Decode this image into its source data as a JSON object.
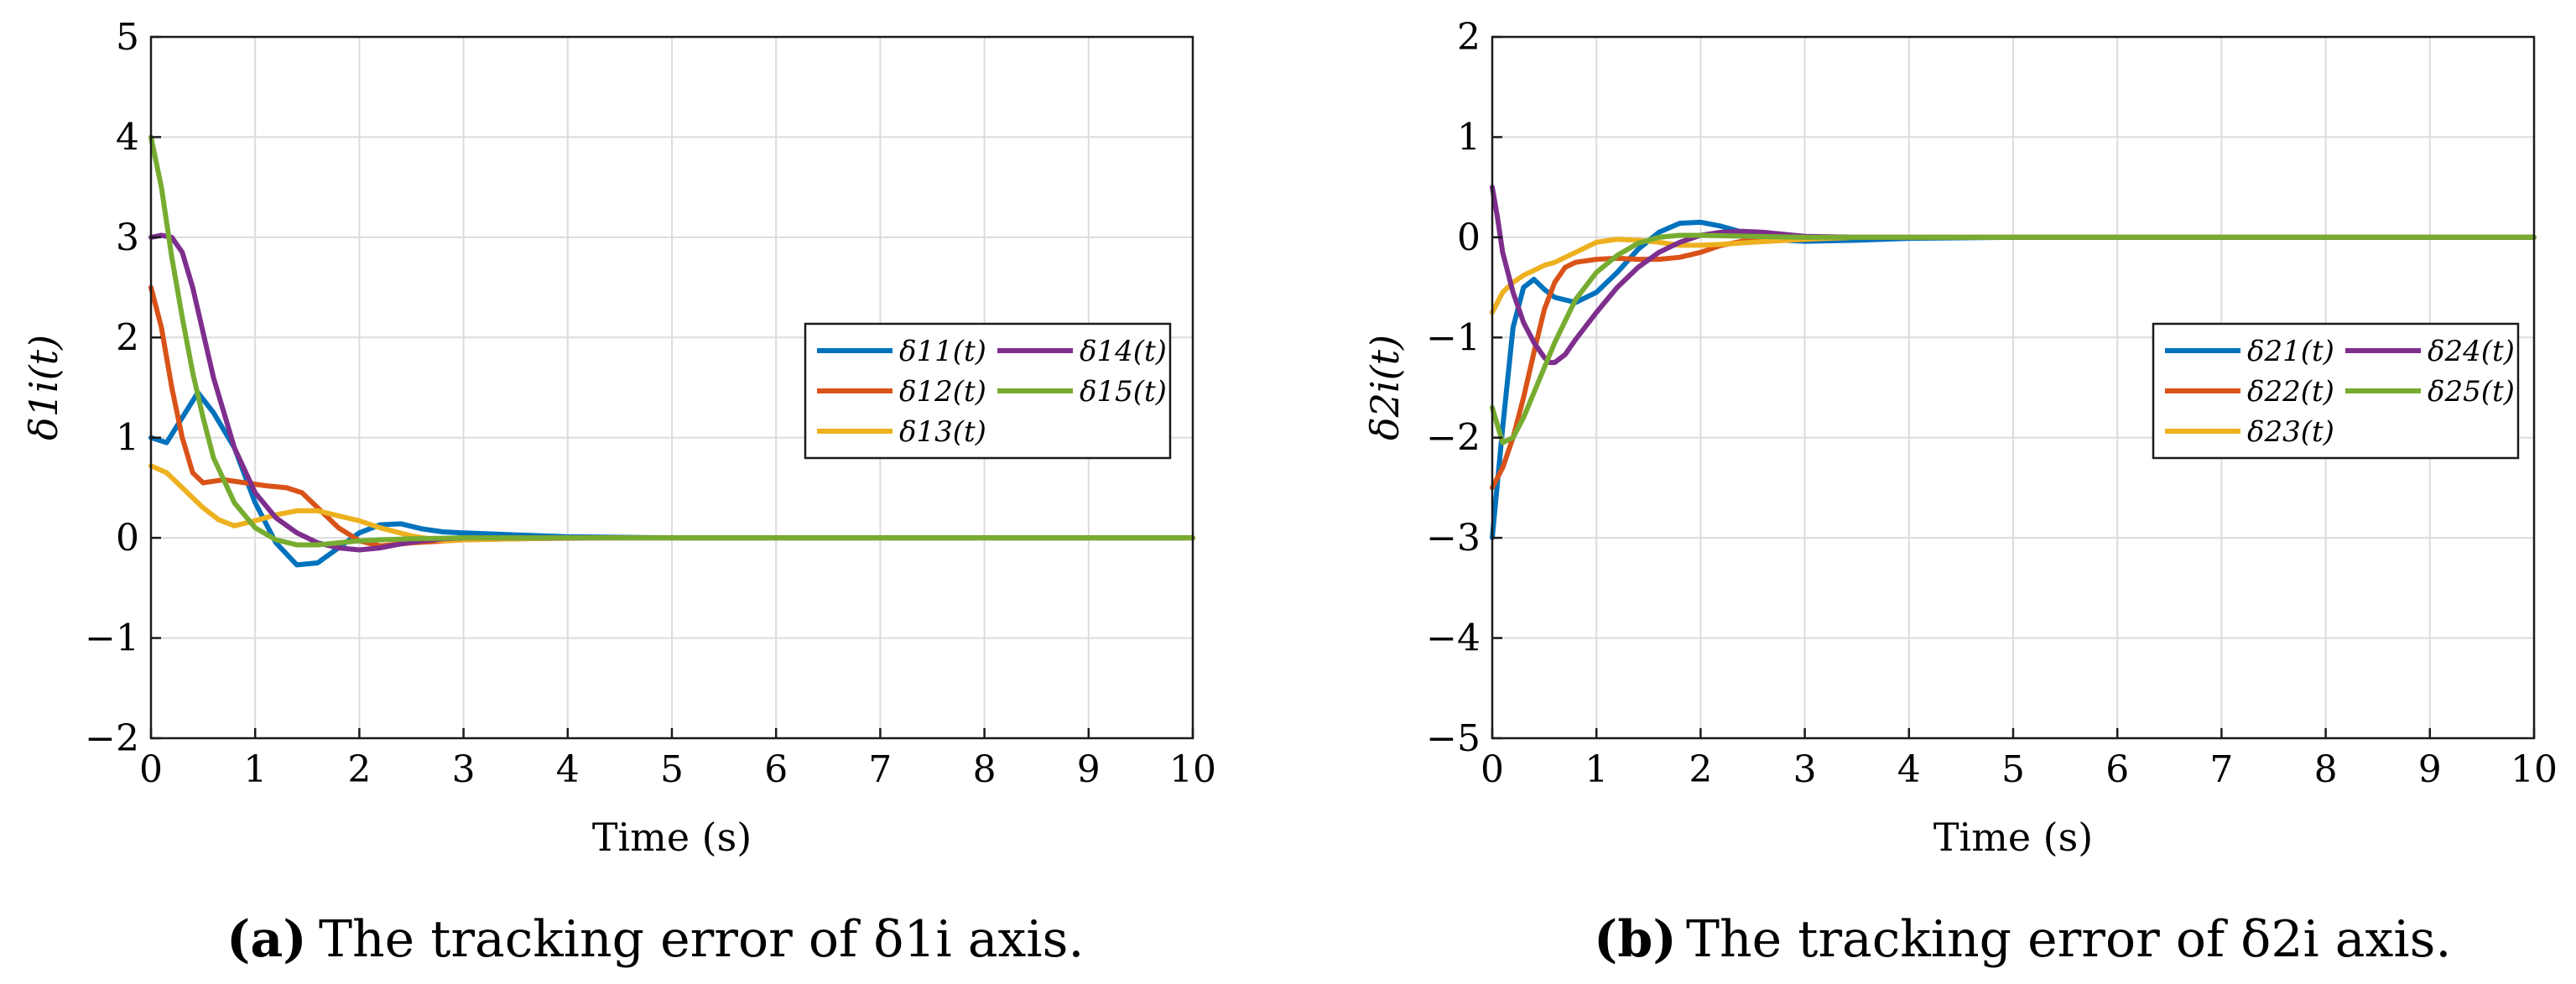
{
  "chart_data": [
    {
      "type": "line",
      "panel": "a",
      "caption_letter": "(a)",
      "caption_text": "The tracking error of δ1i axis.",
      "xlabel": "Time (s)",
      "ylabel": "δ1i(t)",
      "xlim": [
        0,
        10
      ],
      "ylim": [
        -2,
        5
      ],
      "xticks": [
        "0",
        "1",
        "2",
        "3",
        "4",
        "5",
        "6",
        "7",
        "8",
        "9",
        "10"
      ],
      "yticks": [
        "−2",
        "−1",
        "0",
        "1",
        "2",
        "3",
        "4",
        "5"
      ],
      "grid": true,
      "legend_position": "right-middle",
      "series": [
        {
          "name": "δ11(t)",
          "color": "#0072BD",
          "x": [
            0,
            0.15,
            0.3,
            0.45,
            0.6,
            0.8,
            1.0,
            1.2,
            1.4,
            1.6,
            1.8,
            2.0,
            2.2,
            2.4,
            2.6,
            2.8,
            3.0,
            3.5,
            4.0,
            5.0,
            10.0
          ],
          "y": [
            1.0,
            0.95,
            1.2,
            1.45,
            1.25,
            0.9,
            0.35,
            -0.05,
            -0.27,
            -0.25,
            -0.1,
            0.05,
            0.13,
            0.14,
            0.09,
            0.06,
            0.05,
            0.03,
            0.01,
            0,
            0
          ]
        },
        {
          "name": "δ12(t)",
          "color": "#D95319",
          "x": [
            0,
            0.1,
            0.2,
            0.3,
            0.4,
            0.5,
            0.7,
            0.9,
            1.1,
            1.3,
            1.45,
            1.6,
            1.8,
            2.0,
            2.2,
            2.5,
            3.0,
            3.5,
            4.3,
            5.0,
            10.0
          ],
          "y": [
            2.5,
            2.1,
            1.5,
            1.0,
            0.65,
            0.55,
            0.58,
            0.55,
            0.52,
            0.5,
            0.45,
            0.3,
            0.1,
            -0.03,
            -0.08,
            -0.05,
            -0.02,
            -0.01,
            0,
            0,
            0
          ]
        },
        {
          "name": "δ13(t)",
          "color": "#EDB120",
          "x": [
            0,
            0.15,
            0.3,
            0.5,
            0.65,
            0.8,
            1.0,
            1.2,
            1.4,
            1.6,
            1.8,
            2.0,
            2.2,
            2.5,
            2.8,
            3.0,
            3.5,
            4.0,
            5.0,
            10.0
          ],
          "y": [
            0.72,
            0.65,
            0.5,
            0.3,
            0.18,
            0.12,
            0.17,
            0.23,
            0.27,
            0.27,
            0.22,
            0.17,
            0.1,
            0.02,
            -0.03,
            -0.02,
            -0.01,
            0,
            0,
            0
          ]
        },
        {
          "name": "δ14(t)",
          "color": "#7E2F8E",
          "x": [
            0,
            0.1,
            0.2,
            0.3,
            0.4,
            0.5,
            0.6,
            0.8,
            1.0,
            1.2,
            1.4,
            1.6,
            1.8,
            2.0,
            2.2,
            2.4,
            2.6,
            2.8,
            3.0,
            3.5,
            4.0,
            5.0,
            10.0
          ],
          "y": [
            3.0,
            3.02,
            3.0,
            2.85,
            2.5,
            2.05,
            1.6,
            0.9,
            0.45,
            0.2,
            0.05,
            -0.05,
            -0.1,
            -0.12,
            -0.1,
            -0.06,
            -0.03,
            -0.01,
            0,
            0,
            0,
            0,
            0
          ]
        },
        {
          "name": "δ15(t)",
          "color": "#77AC30",
          "x": [
            0,
            0.1,
            0.2,
            0.3,
            0.4,
            0.5,
            0.6,
            0.8,
            1.0,
            1.2,
            1.4,
            1.6,
            1.8,
            2.0,
            2.2,
            2.5,
            3.0,
            3.5,
            4.0,
            5.0,
            10.0
          ],
          "y": [
            4.0,
            3.5,
            2.8,
            2.2,
            1.65,
            1.2,
            0.8,
            0.35,
            0.1,
            -0.02,
            -0.07,
            -0.07,
            -0.05,
            -0.03,
            -0.02,
            -0.01,
            0,
            0,
            0,
            0,
            0
          ]
        }
      ]
    },
    {
      "type": "line",
      "panel": "b",
      "caption_letter": "(b)",
      "caption_text": "The tracking error of δ2i axis.",
      "xlabel": "Time (s)",
      "ylabel": "δ2i(t)",
      "xlim": [
        0,
        10
      ],
      "ylim": [
        -5,
        2
      ],
      "xticks": [
        "0",
        "1",
        "2",
        "3",
        "4",
        "5",
        "6",
        "7",
        "8",
        "9",
        "10"
      ],
      "yticks": [
        "−5",
        "−4",
        "−3",
        "−2",
        "−1",
        "0",
        "1",
        "2"
      ],
      "grid": true,
      "legend_position": "right-middle",
      "series": [
        {
          "name": "δ21(t)",
          "color": "#0072BD",
          "x": [
            0,
            0.1,
            0.2,
            0.3,
            0.4,
            0.5,
            0.6,
            0.8,
            1.0,
            1.2,
            1.4,
            1.6,
            1.8,
            2.0,
            2.2,
            2.4,
            2.6,
            2.8,
            3.0,
            3.5,
            4.0,
            5.0,
            10.0
          ],
          "y": [
            -3.0,
            -1.9,
            -0.9,
            -0.5,
            -0.42,
            -0.52,
            -0.6,
            -0.65,
            -0.55,
            -0.35,
            -0.12,
            0.05,
            0.14,
            0.15,
            0.11,
            0.05,
            0,
            -0.03,
            -0.04,
            -0.03,
            -0.01,
            0,
            0
          ]
        },
        {
          "name": "δ22(t)",
          "color": "#D95319",
          "x": [
            0,
            0.1,
            0.2,
            0.3,
            0.4,
            0.5,
            0.6,
            0.7,
            0.8,
            1.0,
            1.2,
            1.4,
            1.6,
            1.8,
            2.0,
            2.2,
            2.4,
            2.6,
            3.0,
            3.5,
            4.0,
            5.0,
            10.0
          ],
          "y": [
            -2.5,
            -2.3,
            -2.0,
            -1.6,
            -1.15,
            -0.72,
            -0.45,
            -0.3,
            -0.25,
            -0.22,
            -0.21,
            -0.22,
            -0.22,
            -0.2,
            -0.15,
            -0.08,
            -0.04,
            -0.02,
            -0.01,
            0,
            0,
            0,
            0
          ]
        },
        {
          "name": "δ23(t)",
          "color": "#EDB120",
          "x": [
            0,
            0.1,
            0.2,
            0.3,
            0.4,
            0.5,
            0.6,
            0.8,
            1.0,
            1.2,
            1.4,
            1.6,
            1.8,
            2.0,
            2.2,
            2.5,
            3.0,
            3.5,
            4.0,
            5.0,
            10.0
          ],
          "y": [
            -0.75,
            -0.55,
            -0.45,
            -0.38,
            -0.33,
            -0.28,
            -0.25,
            -0.15,
            -0.05,
            -0.02,
            -0.03,
            -0.05,
            -0.08,
            -0.08,
            -0.07,
            -0.05,
            -0.02,
            0,
            0,
            0,
            0
          ]
        },
        {
          "name": "δ24(t)",
          "color": "#7E2F8E",
          "x": [
            0,
            0.05,
            0.1,
            0.2,
            0.3,
            0.4,
            0.5,
            0.55,
            0.6,
            0.7,
            0.8,
            1.0,
            1.2,
            1.4,
            1.6,
            1.8,
            2.0,
            2.2,
            2.4,
            2.6,
            2.8,
            3.0,
            3.5,
            4.0,
            5.0,
            10.0
          ],
          "y": [
            0.5,
            0.2,
            -0.15,
            -0.55,
            -0.85,
            -1.05,
            -1.2,
            -1.25,
            -1.25,
            -1.17,
            -1.02,
            -0.75,
            -0.5,
            -0.3,
            -0.15,
            -0.05,
            0.02,
            0.05,
            0.06,
            0.05,
            0.03,
            0.01,
            0,
            0,
            0,
            0
          ]
        },
        {
          "name": "δ25(t)",
          "color": "#77AC30",
          "x": [
            0,
            0.1,
            0.2,
            0.3,
            0.4,
            0.5,
            0.6,
            0.8,
            1.0,
            1.2,
            1.4,
            1.6,
            1.8,
            2.0,
            2.5,
            3.0,
            3.5,
            4.0,
            4.8,
            5.0,
            10.0
          ],
          "y": [
            -1.7,
            -2.05,
            -2.0,
            -1.8,
            -1.55,
            -1.3,
            -1.05,
            -0.62,
            -0.35,
            -0.18,
            -0.06,
            0.0,
            0.02,
            0.02,
            0.01,
            0,
            0,
            0,
            0,
            0,
            0
          ]
        }
      ]
    }
  ]
}
